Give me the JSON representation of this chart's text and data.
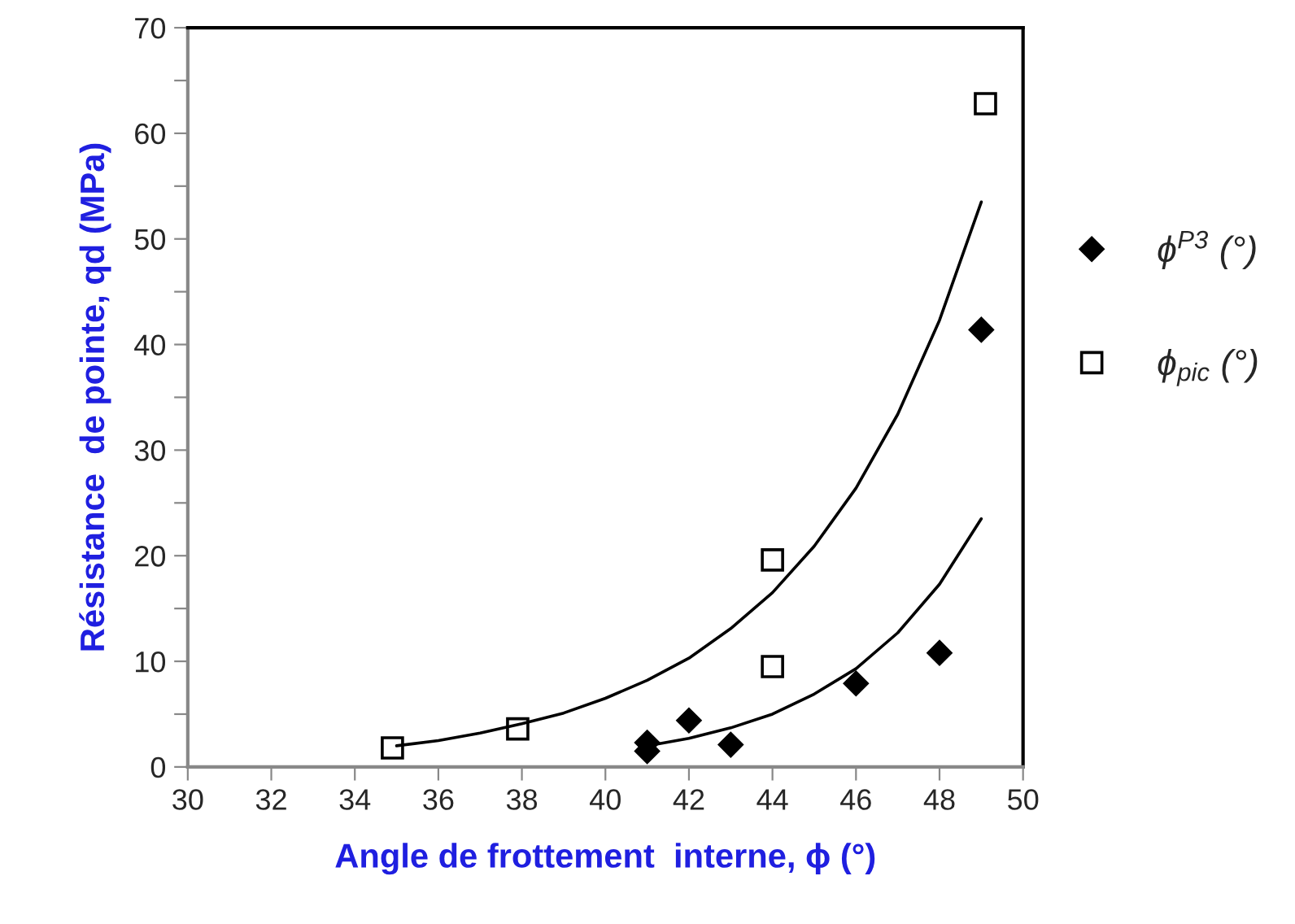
{
  "chart_data": {
    "type": "scatter",
    "xlabel": "Angle de frottement  interne, ϕ (°)",
    "ylabel": "Résistance  de pointe, qd (MPa)",
    "xlim": [
      30,
      50
    ],
    "xticks": [
      30,
      32,
      34,
      36,
      38,
      40,
      42,
      44,
      46,
      48,
      50
    ],
    "ylim": [
      0,
      70
    ],
    "yticks": [
      0,
      {
        "value": 5,
        "label": null
      },
      10,
      {
        "value": 15,
        "label": null
      },
      20,
      {
        "value": 25,
        "label": null
      },
      30,
      {
        "value": 35,
        "label": null
      },
      40,
      {
        "value": 45,
        "label": null
      },
      50,
      {
        "value": 55,
        "label": null
      },
      60,
      {
        "value": 65,
        "label": null
      },
      70
    ],
    "grid": false,
    "legend": "right",
    "series": [
      {
        "name": "ϕ$^{P3}$ (°)",
        "marker": "diamond",
        "color": "#000000",
        "x": [
          41,
          41,
          42,
          43,
          46,
          48,
          49
        ],
        "values": [
          1.5,
          2.3,
          4.4,
          2.1,
          7.9,
          10.8,
          41.4
        ]
      },
      {
        "name": "ϕ$_{pic}$ (°)",
        "marker": "square",
        "color": "#000000",
        "x": [
          34.9,
          37.9,
          44,
          44,
          49.1
        ],
        "values": [
          1.8,
          3.6,
          19.6,
          9.5,
          62.8
        ]
      },
      {
        "type": "line",
        "marker": "none",
        "color": "#000000",
        "x": [
          35,
          36,
          37,
          38,
          39,
          40,
          41,
          42,
          43,
          44,
          45,
          46,
          47,
          48,
          49
        ],
        "values": [
          2.0,
          2.5,
          3.2,
          4.1,
          5.1,
          6.5,
          8.2,
          10.3,
          13.1,
          16.5,
          20.9,
          26.4,
          33.4,
          42.3,
          53.5
        ]
      },
      {
        "type": "line",
        "marker": "none",
        "color": "#000000",
        "x": [
          41,
          42,
          43,
          44,
          45,
          46,
          47,
          48,
          49
        ],
        "values": [
          2.0,
          2.7,
          3.7,
          5.0,
          6.9,
          9.3,
          12.7,
          17.3,
          23.5
        ]
      }
    ]
  }
}
